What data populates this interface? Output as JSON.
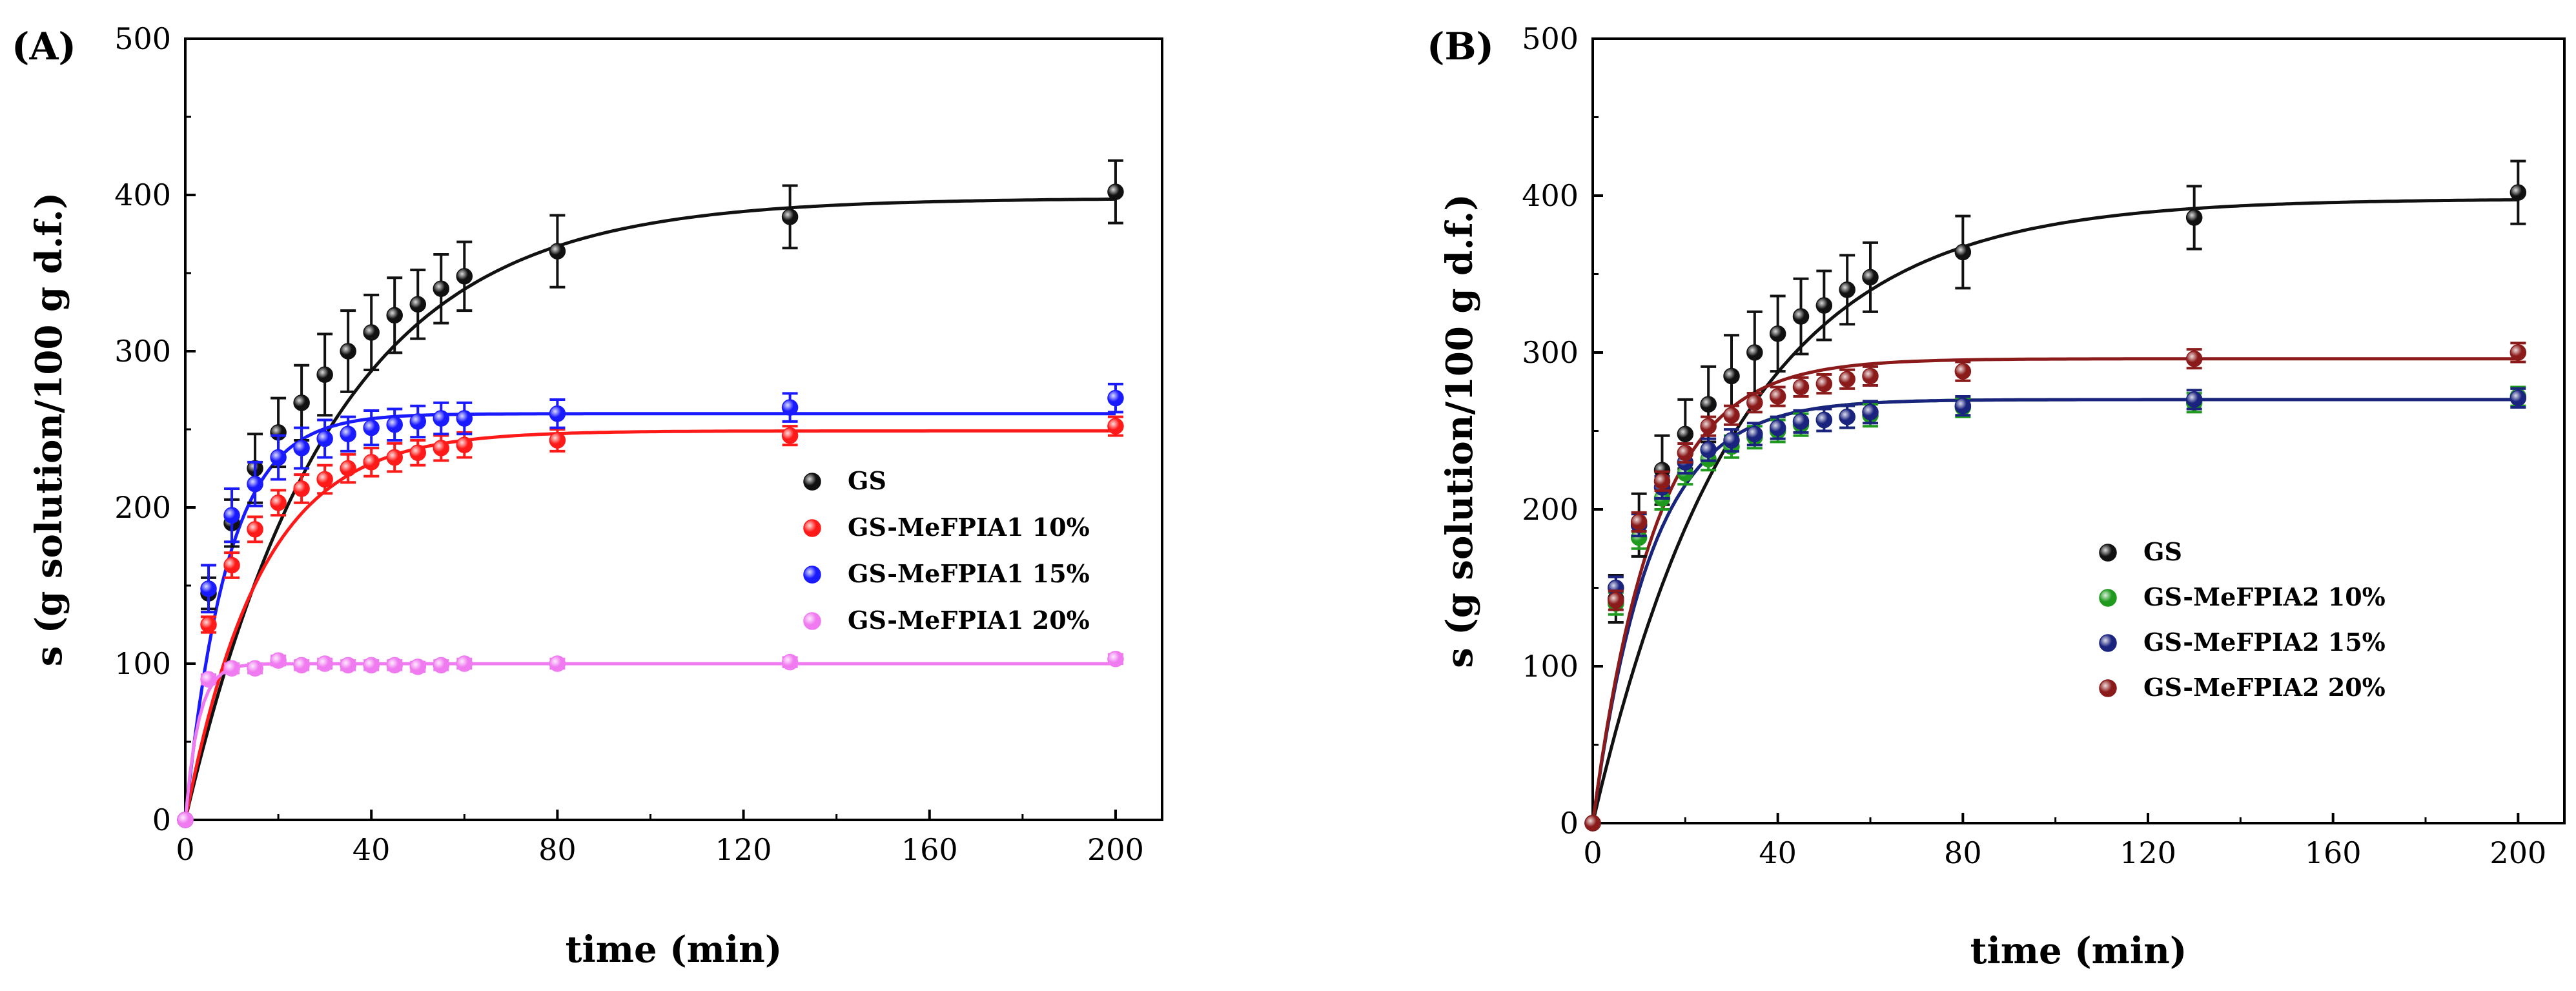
{
  "chart_data": [
    {
      "type": "scatter",
      "panel_label": "(A)",
      "xlabel": "time (min)",
      "ylabel": "s (g solution/100 g d.f.)",
      "xlim": [
        0,
        210
      ],
      "ylim": [
        0,
        500
      ],
      "xticks": [
        0,
        40,
        80,
        120,
        160,
        200
      ],
      "yticks": [
        0,
        100,
        200,
        300,
        400,
        500
      ],
      "legend_position": "right-center",
      "series": [
        {
          "name": "GS",
          "color": "#111111",
          "x": [
            0,
            5,
            10,
            15,
            20,
            25,
            30,
            35,
            40,
            45,
            50,
            55,
            60,
            80,
            130,
            200
          ],
          "y": [
            0,
            145,
            190,
            225,
            248,
            267,
            285,
            300,
            312,
            323,
            330,
            340,
            348,
            364,
            386,
            402
          ],
          "err": [
            0,
            10,
            15,
            22,
            22,
            24,
            26,
            26,
            24,
            24,
            22,
            22,
            22,
            23,
            20,
            20
          ],
          "fit": {
            "smax": 398,
            "k": 0.032
          }
        },
        {
          "name": "GS-MeFPIA1 10%",
          "color": "#ff1a1a",
          "x": [
            0,
            5,
            10,
            15,
            20,
            25,
            30,
            35,
            40,
            45,
            50,
            55,
            60,
            80,
            130,
            200
          ],
          "y": [
            0,
            125,
            163,
            186,
            203,
            212,
            218,
            225,
            229,
            232,
            235,
            238,
            240,
            243,
            246,
            252
          ],
          "err": [
            0,
            5,
            8,
            8,
            8,
            9,
            9,
            9,
            9,
            9,
            8,
            8,
            8,
            7,
            6,
            6
          ],
          "fit": {
            "smax": 249,
            "k": 0.062
          }
        },
        {
          "name": "GS-MeFPIA1 15%",
          "color": "#1a1aff",
          "x": [
            0,
            5,
            10,
            15,
            20,
            25,
            30,
            35,
            40,
            45,
            50,
            55,
            60,
            80,
            130,
            200
          ],
          "y": [
            0,
            148,
            195,
            215,
            232,
            238,
            244,
            247,
            251,
            253,
            255,
            257,
            257,
            260,
            264,
            270
          ],
          "err": [
            0,
            15,
            17,
            14,
            14,
            13,
            12,
            11,
            11,
            10,
            10,
            10,
            10,
            9,
            9,
            9
          ],
          "fit": {
            "smax": 260,
            "k": 0.11
          }
        },
        {
          "name": "GS-MeFPIA1 20%",
          "color": "#f07af0",
          "x": [
            0,
            5,
            10,
            15,
            20,
            25,
            30,
            35,
            40,
            45,
            50,
            55,
            60,
            80,
            130,
            200
          ],
          "y": [
            0,
            90,
            97,
            97,
            102,
            99,
            100,
            99,
            99,
            99,
            98,
            99,
            100,
            100,
            101,
            103
          ],
          "err": [
            0,
            3,
            3,
            3,
            3,
            3,
            3,
            3,
            3,
            3,
            3,
            3,
            3,
            3,
            3,
            3
          ],
          "fit": {
            "smax": 100,
            "k": 0.35
          }
        }
      ]
    },
    {
      "type": "scatter",
      "panel_label": "(B)",
      "xlabel": "time (min)",
      "ylabel": "s (g solution/100 g d.f.)",
      "xlim": [
        0,
        210
      ],
      "ylim": [
        0,
        500
      ],
      "xticks": [
        0,
        40,
        80,
        120,
        160,
        200
      ],
      "yticks": [
        0,
        100,
        200,
        300,
        400,
        500
      ],
      "legend_position": "right-center",
      "series": [
        {
          "name": "GS",
          "color": "#111111",
          "x": [
            0,
            5,
            10,
            15,
            20,
            25,
            30,
            35,
            40,
            45,
            50,
            55,
            60,
            80,
            130,
            200
          ],
          "y": [
            0,
            143,
            190,
            225,
            248,
            267,
            285,
            300,
            312,
            323,
            330,
            340,
            348,
            364,
            386,
            402
          ],
          "err": [
            0,
            15,
            20,
            22,
            22,
            24,
            26,
            26,
            24,
            24,
            22,
            22,
            22,
            23,
            20,
            20
          ],
          "fit": {
            "smax": 398,
            "k": 0.032
          }
        },
        {
          "name": "GS-MeFPIA2 10%",
          "color": "#1f9a1f",
          "x": [
            0,
            5,
            10,
            15,
            20,
            25,
            30,
            35,
            40,
            45,
            50,
            55,
            60,
            80,
            130,
            200
          ],
          "y": [
            0,
            140,
            182,
            207,
            223,
            232,
            240,
            246,
            250,
            254,
            257,
            259,
            260,
            265,
            268,
            272
          ],
          "err": [
            0,
            7,
            7,
            7,
            7,
            7,
            7,
            7,
            7,
            7,
            7,
            7,
            7,
            6,
            6,
            6
          ],
          "fit": {
            "smax": 270,
            "k": 0.08
          }
        },
        {
          "name": "GS-MeFPIA2 15%",
          "color": "#1a237e",
          "x": [
            0,
            5,
            10,
            15,
            20,
            25,
            30,
            35,
            40,
            45,
            50,
            55,
            60,
            80,
            130,
            200
          ],
          "y": [
            0,
            150,
            190,
            214,
            230,
            238,
            244,
            248,
            252,
            256,
            257,
            259,
            262,
            266,
            270,
            271
          ],
          "err": [
            0,
            7,
            7,
            7,
            7,
            7,
            7,
            7,
            7,
            7,
            7,
            7,
            7,
            6,
            6,
            6
          ],
          "fit": {
            "smax": 270,
            "k": 0.08
          }
        },
        {
          "name": "GS-MeFPIA2 20%",
          "color": "#8b1a1a",
          "x": [
            0,
            5,
            10,
            15,
            20,
            25,
            30,
            35,
            40,
            45,
            50,
            55,
            60,
            80,
            130,
            200
          ],
          "y": [
            0,
            142,
            192,
            218,
            236,
            253,
            260,
            268,
            272,
            278,
            280,
            283,
            285,
            288,
            296,
            300
          ],
          "err": [
            0,
            6,
            6,
            6,
            6,
            6,
            6,
            6,
            6,
            6,
            6,
            6,
            6,
            6,
            6,
            6
          ],
          "fit": {
            "smax": 296,
            "k": 0.075
          }
        }
      ]
    }
  ]
}
